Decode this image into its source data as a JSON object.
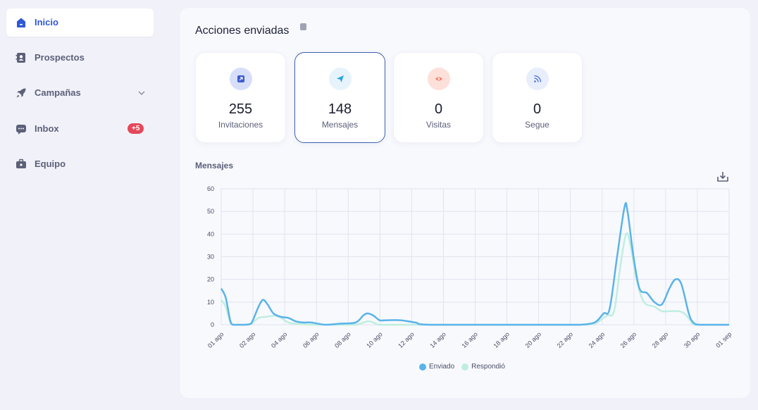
{
  "sidebar": {
    "items": [
      {
        "label": "Inicio",
        "icon": "home-icon",
        "active": true
      },
      {
        "label": "Prospectos",
        "icon": "contacts-icon"
      },
      {
        "label": "Campañas",
        "icon": "rocket-icon"
      },
      {
        "label": "Inbox",
        "icon": "chat-icon",
        "badge": "+5"
      },
      {
        "label": "Equipo",
        "icon": "briefcase-icon"
      }
    ]
  },
  "actions": {
    "title": "Acciones enviadas",
    "stats": [
      {
        "value": "255",
        "label": "Invitaciones",
        "icon": "link-icon",
        "color": "#d7defa"
      },
      {
        "value": "148",
        "label": "Mensajes",
        "icon": "send-icon",
        "color": "#e6f3fb"
      },
      {
        "value": "0",
        "label": "Visitas",
        "icon": "eye-icon",
        "color": "#fde0da"
      },
      {
        "value": "0",
        "label": "Segue",
        "icon": "rss-icon",
        "color": "#e8eefb"
      }
    ]
  },
  "chart_data": {
    "type": "line",
    "title": "Mensajes",
    "ylim": [
      0,
      60
    ],
    "yticks": [
      "0",
      "10",
      "20",
      "30",
      "40",
      "50",
      "60"
    ],
    "xticks": [
      "01 ago",
      "02 ago",
      "04 ago",
      "06 ago",
      "08 ago",
      "10 ago",
      "12 ago",
      "14 ago",
      "16 ago",
      "18 ago",
      "20 ago",
      "22 ago",
      "24 ago",
      "26 ago",
      "28 ago",
      "30 ago",
      "01 sep"
    ],
    "series": [
      {
        "name": "Enviado",
        "color": "#5ab3ea",
        "points": [
          [
            0,
            16
          ],
          [
            0.3,
            12
          ],
          [
            0.6,
            2
          ],
          [
            0.8,
            0
          ],
          [
            1.2,
            0
          ],
          [
            1.6,
            0
          ],
          [
            2,
            0.5
          ],
          [
            2.5,
            8
          ],
          [
            2.8,
            11
          ],
          [
            3.1,
            9
          ],
          [
            3.5,
            5
          ],
          [
            4,
            3.5
          ],
          [
            4.5,
            3
          ],
          [
            5,
            1.5
          ],
          [
            5.5,
            1
          ],
          [
            6,
            1
          ],
          [
            7,
            0
          ],
          [
            8,
            0.5
          ],
          [
            9,
            1
          ],
          [
            9.5,
            4
          ],
          [
            9.8,
            5
          ],
          [
            10.2,
            4
          ],
          [
            10.6,
            2
          ],
          [
            11,
            2
          ],
          [
            12,
            2
          ],
          [
            13,
            1
          ],
          [
            14,
            0
          ],
          [
            20,
            0
          ],
          [
            21,
            0
          ],
          [
            22,
            0
          ],
          [
            23,
            0
          ],
          [
            24,
            0
          ],
          [
            25,
            1
          ],
          [
            25.6,
            5
          ],
          [
            26,
            7
          ],
          [
            26.5,
            30
          ],
          [
            27,
            52
          ],
          [
            27.2,
            50
          ],
          [
            27.6,
            30
          ],
          [
            28,
            16
          ],
          [
            28.5,
            14
          ],
          [
            29,
            10
          ],
          [
            29.5,
            9
          ],
          [
            30,
            16
          ],
          [
            30.4,
            20
          ],
          [
            30.8,
            18
          ],
          [
            31.3,
            5
          ],
          [
            31.6,
            1
          ],
          [
            32,
            0
          ],
          [
            33,
            0
          ],
          [
            34,
            0
          ]
        ]
      },
      {
        "name": "Respondió",
        "color": "#bfeee0",
        "points": [
          [
            0,
            11
          ],
          [
            0.3,
            8
          ],
          [
            0.6,
            1
          ],
          [
            0.8,
            0
          ],
          [
            1.5,
            0
          ],
          [
            2,
            0.5
          ],
          [
            2.5,
            3
          ],
          [
            3,
            3.5
          ],
          [
            3.6,
            4
          ],
          [
            4,
            3
          ],
          [
            4.5,
            1
          ],
          [
            5,
            0.5
          ],
          [
            6,
            0
          ],
          [
            7,
            0
          ],
          [
            8,
            0
          ],
          [
            9,
            0
          ],
          [
            9.8,
            1.5
          ],
          [
            10.2,
            1
          ],
          [
            10.6,
            0
          ],
          [
            12,
            0
          ],
          [
            14,
            0
          ],
          [
            20,
            0
          ],
          [
            22,
            0
          ],
          [
            24,
            0
          ],
          [
            25,
            0.5
          ],
          [
            25.8,
            4
          ],
          [
            26.3,
            6
          ],
          [
            26.7,
            25
          ],
          [
            27.1,
            40
          ],
          [
            27.4,
            35
          ],
          [
            27.8,
            20
          ],
          [
            28.3,
            10
          ],
          [
            29,
            8
          ],
          [
            29.5,
            6
          ],
          [
            30,
            6
          ],
          [
            30.6,
            6
          ],
          [
            31,
            5
          ],
          [
            31.4,
            2
          ],
          [
            31.7,
            0
          ],
          [
            33,
            0
          ],
          [
            34,
            0
          ]
        ]
      }
    ]
  },
  "chart": {
    "title": "Mensajes",
    "download_icon": "download-icon",
    "legend": [
      "Enviado",
      "Respondió"
    ],
    "legend_colors": [
      "#5ab3ea",
      "#bfeee0"
    ]
  }
}
